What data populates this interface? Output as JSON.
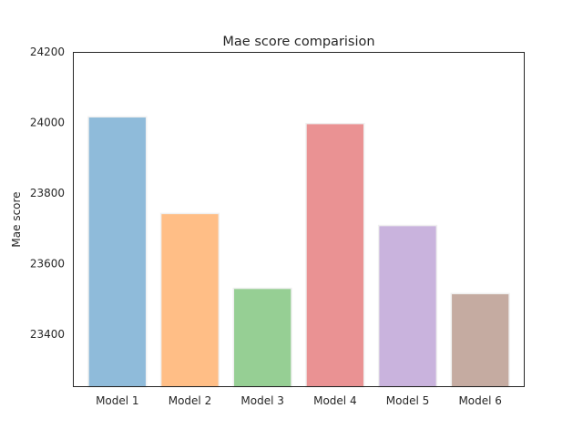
{
  "chart_data": {
    "type": "bar",
    "title": "Mae score comparision",
    "xlabel": "",
    "ylabel": "Mae score",
    "categories": [
      "Model 1",
      "Model 2",
      "Model 3",
      "Model 4",
      "Model 5",
      "Model 6"
    ],
    "values": [
      24016,
      23742,
      23530,
      23997,
      23708,
      23515
    ],
    "ylim": [
      23250,
      24200
    ],
    "yticks": [
      23400,
      23600,
      23800,
      24000,
      24200
    ],
    "grid": false,
    "bar_colors": [
      "#8fbbda",
      "#ffbe86",
      "#96cf94",
      "#ea9293",
      "#c9b3dd",
      "#c5aba1"
    ],
    "bar_edge_color": "#f0f0f0"
  }
}
